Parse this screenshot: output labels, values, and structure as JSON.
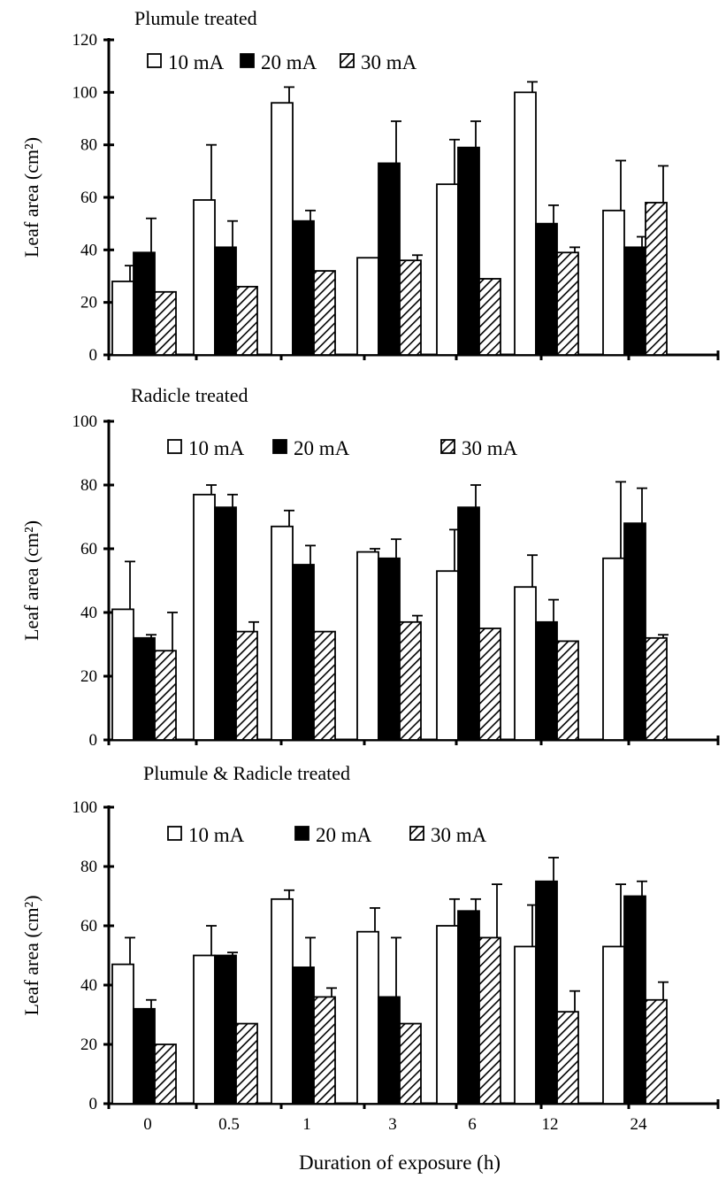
{
  "figure": {
    "xlabel": "Duration of exposure (h)"
  },
  "chart_data": [
    {
      "type": "bar",
      "title": "Plumule treated",
      "ylabel": "Leaf area (cm²)",
      "ylim": [
        0,
        120
      ],
      "yticks": [
        "0",
        "20",
        "40",
        "60",
        "80",
        "100",
        "120"
      ],
      "categories": [
        "0",
        "0.5",
        "1",
        "3",
        "6",
        "12",
        "24"
      ],
      "legend": [
        "10 mA",
        "20 mA",
        "30 mA"
      ],
      "series": [
        {
          "name": "10 mA",
          "fill": "white",
          "values": [
            28,
            59,
            96,
            37,
            65,
            100,
            55
          ],
          "errors": [
            6,
            21,
            6,
            0,
            17,
            4,
            19
          ]
        },
        {
          "name": "20 mA",
          "fill": "black",
          "values": [
            39,
            41,
            51,
            73,
            79,
            50,
            41
          ],
          "errors": [
            13,
            10,
            4,
            16,
            10,
            7,
            4
          ]
        },
        {
          "name": "30 mA",
          "fill": "hatched",
          "values": [
            24,
            26,
            32,
            36,
            29,
            39,
            58
          ],
          "errors": [
            0,
            0,
            0,
            2,
            0,
            2,
            14
          ]
        }
      ]
    },
    {
      "type": "bar",
      "title": "Radicle treated",
      "ylabel": "Leaf area (cm²)",
      "ylim": [
        0,
        100
      ],
      "yticks": [
        "0",
        "20",
        "40",
        "60",
        "80",
        "100"
      ],
      "categories": [
        "0",
        "0.5",
        "1",
        "3",
        "6",
        "12",
        "24"
      ],
      "legend": [
        "10 mA",
        "20 mA",
        "30 mA"
      ],
      "series": [
        {
          "name": "10 mA",
          "fill": "white",
          "values": [
            41,
            77,
            67,
            59,
            53,
            48,
            57
          ],
          "errors": [
            15,
            3,
            5,
            1,
            13,
            10,
            24
          ]
        },
        {
          "name": "20 mA",
          "fill": "black",
          "values": [
            32,
            73,
            55,
            57,
            73,
            37,
            68
          ],
          "errors": [
            1,
            4,
            6,
            6,
            7,
            7,
            11
          ]
        },
        {
          "name": "30 mA",
          "fill": "hatched",
          "values": [
            28,
            34,
            34,
            37,
            35,
            31,
            32
          ],
          "errors": [
            12,
            3,
            0,
            2,
            0,
            0,
            1
          ]
        }
      ]
    },
    {
      "type": "bar",
      "title": "Plumule & Radicle treated",
      "ylabel": "Leaf area (cm²)",
      "ylim": [
        0,
        100
      ],
      "yticks": [
        "0",
        "20",
        "40",
        "60",
        "80",
        "100"
      ],
      "categories": [
        "0",
        "0.5",
        "1",
        "3",
        "6",
        "12",
        "24"
      ],
      "legend": [
        "10 mA",
        "20 mA",
        "30 mA"
      ],
      "series": [
        {
          "name": "10 mA",
          "fill": "white",
          "values": [
            47,
            50,
            69,
            58,
            60,
            53,
            53
          ],
          "errors": [
            9,
            10,
            3,
            8,
            9,
            14,
            21
          ]
        },
        {
          "name": "20 mA",
          "fill": "black",
          "values": [
            32,
            50,
            46,
            36,
            65,
            75,
            70
          ],
          "errors": [
            3,
            1,
            10,
            20,
            4,
            8,
            5
          ]
        },
        {
          "name": "30 mA",
          "fill": "hatched",
          "values": [
            20,
            27,
            36,
            27,
            56,
            31,
            35
          ],
          "errors": [
            0,
            0,
            3,
            0,
            18,
            7,
            6
          ]
        }
      ]
    }
  ]
}
